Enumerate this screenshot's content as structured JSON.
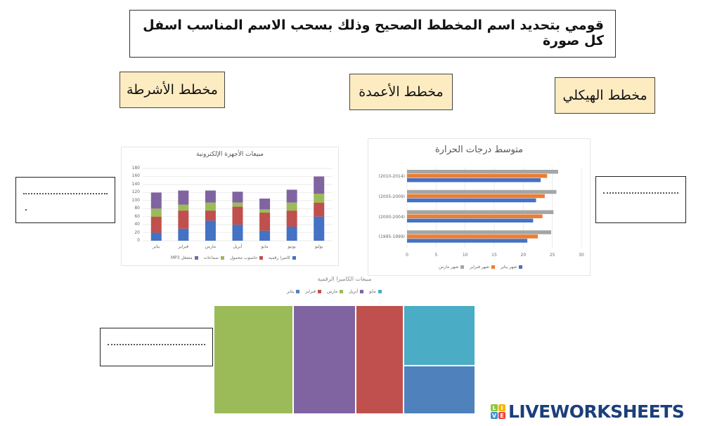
{
  "instruction": "قومي بتحديد اسم المخطط الصحيح وذلك بسحب الاسم المناسب اسفل كل صورة",
  "label_cards": [
    {
      "id": "bars",
      "text": "مخطط الأشرطة"
    },
    {
      "id": "columns",
      "text": "مخطط الأعمدة"
    },
    {
      "id": "treemap",
      "text": "مخطط الهيكلي"
    }
  ],
  "answer_boxes": [
    {
      "id": "answer-left",
      "placeholder": "....................."
    },
    {
      "id": "answer-right",
      "placeholder": "....................."
    },
    {
      "id": "answer-bottom",
      "placeholder": "....................."
    }
  ],
  "colors": {
    "card_bg": "#fdecc2",
    "blue": "#4472c4",
    "red": "#c0504d",
    "green": "#9bbb59",
    "purple": "#8064a2",
    "teal": "#4bacc6",
    "orange": "#ed7d31",
    "gray": "#a5a5a5",
    "logo_navy": "#1b3f7a"
  },
  "chart_data": [
    {
      "type": "bar",
      "subtype": "stacked-column",
      "title": "مبيعات الأجهزة الإلكترونية",
      "categories": [
        "يناير",
        "فبراير",
        "مارس",
        "أبريل",
        "مايو",
        "يونيو",
        "يوليو"
      ],
      "series": [
        {
          "name": "كاميرا رقمية",
          "color": "#4472c4",
          "values": [
            20,
            30,
            50,
            40,
            25,
            35,
            60
          ]
        },
        {
          "name": "حاسوب محمول",
          "color": "#c0504d",
          "values": [
            40,
            45,
            25,
            45,
            45,
            40,
            35
          ]
        },
        {
          "name": "سماعات",
          "color": "#9bbb59",
          "values": [
            20,
            15,
            20,
            10,
            8,
            20,
            22
          ]
        },
        {
          "name": "مشغل MP3",
          "color": "#8064a2",
          "values": [
            40,
            35,
            30,
            27,
            27,
            32,
            43
          ]
        }
      ],
      "yticks": [
        0,
        20,
        40,
        60,
        80,
        100,
        120,
        140,
        160,
        180
      ],
      "ylim": [
        0,
        180
      ],
      "grid": true,
      "legend_position": "bottom"
    },
    {
      "type": "bar",
      "subtype": "clustered-horizontal",
      "title": "متوسط درجات الحرارة",
      "categories": [
        "(1995-1999)",
        "(2000-2004)",
        "(2005-2009)",
        "(2010-2014)"
      ],
      "series": [
        {
          "name": "شهر يناير",
          "color": "#4472c4",
          "values": [
            20.7,
            21.7,
            22.2,
            23.0
          ]
        },
        {
          "name": "شهر فبراير",
          "color": "#ed7d31",
          "values": [
            22.5,
            23.3,
            23.7,
            24.1
          ]
        },
        {
          "name": "شهر مارس",
          "color": "#a5a5a5",
          "values": [
            24.8,
            25.2,
            25.7,
            26.0
          ]
        }
      ],
      "xticks": [
        0,
        5,
        10,
        15,
        20,
        25,
        30
      ],
      "xlim": [
        0,
        30
      ],
      "grid": true,
      "legend_position": "bottom"
    },
    {
      "type": "treemap",
      "title": "مبيعات الكاميرا الرقمية",
      "legend": [
        {
          "name": "يناير",
          "color": "#4f81bd"
        },
        {
          "name": "فبراير",
          "color": "#c0504d"
        },
        {
          "name": "مارس",
          "color": "#9bbb59"
        },
        {
          "name": "أبريل",
          "color": "#8064a2"
        },
        {
          "name": "مايو",
          "color": "#4bacc6"
        }
      ],
      "values": {
        "مارس": 50,
        "أبريل": 40,
        "فبراير": 30,
        "مايو": 25,
        "يناير": 20
      },
      "legend_position": "top"
    }
  ],
  "branding": {
    "logo_letters": [
      "L",
      "I",
      "V",
      "E"
    ],
    "logo_text": "LIVEWORKSHEETS"
  }
}
